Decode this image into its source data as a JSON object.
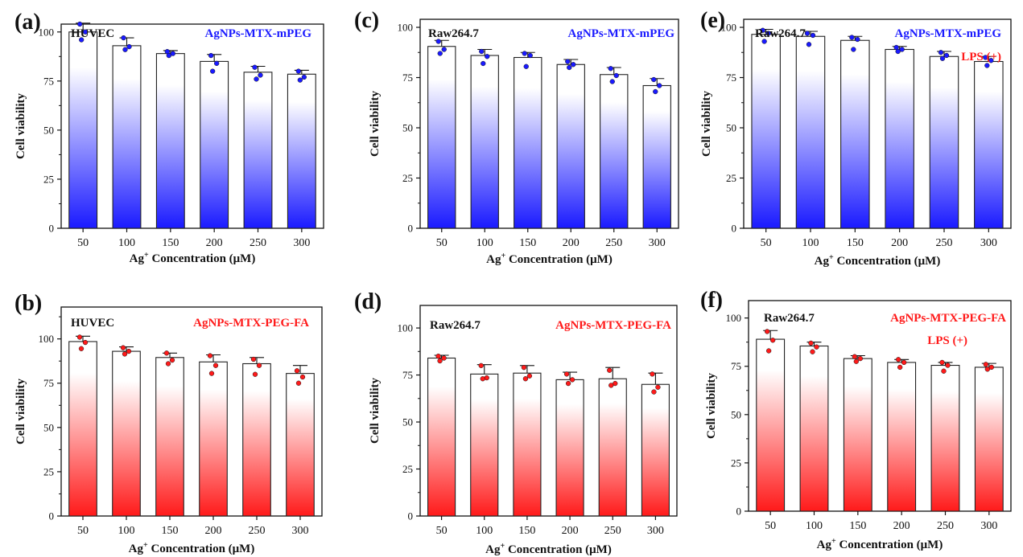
{
  "colors": {
    "blue": "#1a1aff",
    "red": "#ff1a1a",
    "text": "#111111"
  },
  "chart_data": [
    {
      "panel": "(a)",
      "type": "bar",
      "cell_line": "HUVEC",
      "sample": "AgNPs-MTX-mPEG",
      "condition": "",
      "color": "blue",
      "categories": [
        "50",
        "100",
        "150",
        "200",
        "250",
        "300"
      ],
      "values": [
        100,
        93,
        89,
        85,
        79.5,
        78.5
      ],
      "error": [
        4.5,
        4,
        1.5,
        3.5,
        3,
        2
      ],
      "points": [
        [
          104,
          100,
          96
        ],
        [
          97,
          92.5,
          91
        ],
        [
          90,
          89,
          88
        ],
        [
          88,
          84,
          80
        ],
        [
          82,
          78,
          76
        ],
        [
          80,
          77,
          75.5
        ]
      ],
      "ylabel": "Cell viability",
      "xlabel_parts": [
        "Ag",
        "+",
        " Concentration (μM)"
      ],
      "ylim": [
        0,
        104
      ],
      "yticks": [
        0,
        25,
        50,
        75,
        100
      ]
    },
    {
      "panel": "(c)",
      "type": "bar",
      "cell_line": "Raw264.7",
      "sample": "AgNPs-MTX-mPEG",
      "condition": "",
      "color": "blue",
      "categories": [
        "50",
        "100",
        "150",
        "200",
        "250",
        "300"
      ],
      "values": [
        90.5,
        86,
        85,
        81.5,
        76.5,
        71
      ],
      "error": [
        3,
        3,
        2.5,
        2.5,
        3.5,
        3.5
      ],
      "points": [
        [
          93,
          89,
          87
        ],
        [
          88,
          85.5,
          82
        ],
        [
          87,
          86,
          80.5
        ],
        [
          83,
          81.5,
          80
        ],
        [
          79.5,
          76,
          73
        ],
        [
          74,
          71,
          68
        ]
      ],
      "ylabel": "Cell viability",
      "xlabel_parts": [
        "Ag",
        "+",
        " Concentration (μM)"
      ],
      "ylim": [
        0,
        104
      ],
      "yticks": [
        0,
        25,
        50,
        75,
        100
      ]
    },
    {
      "panel": "(e)",
      "type": "bar",
      "cell_line": "Raw264.7",
      "sample": "AgNPs-MTX-mPEG",
      "condition": "LPS (+)",
      "color": "blue",
      "categories": [
        "50",
        "100",
        "150",
        "200",
        "250",
        "300"
      ],
      "values": [
        96.5,
        95.5,
        93.5,
        89,
        85.5,
        83
      ],
      "error": [
        2.5,
        2.5,
        2,
        1.5,
        2.5,
        2.5
      ],
      "points": [
        [
          98.5,
          97,
          93
        ],
        [
          97,
          96,
          91.5
        ],
        [
          95,
          94,
          89
        ],
        [
          90,
          89,
          88
        ],
        [
          87.5,
          86,
          84.5
        ],
        [
          85,
          83.5,
          81
        ]
      ],
      "ylabel": "Cell viability",
      "xlabel_parts": [
        "Ag",
        "+",
        " Concentration (μM)"
      ],
      "ylim": [
        0,
        104
      ],
      "yticks": [
        0,
        25,
        50,
        75,
        100
      ]
    },
    {
      "panel": "(b)",
      "type": "bar",
      "cell_line": "HUVEC",
      "sample": "AgNPs-MTX-PEG-FA",
      "condition": "",
      "color": "red",
      "categories": [
        "50",
        "100",
        "150",
        "200",
        "250",
        "300"
      ],
      "values": [
        98.5,
        93,
        89.5,
        87,
        86,
        80.5
      ],
      "error": [
        3,
        2.5,
        2.5,
        4,
        3.5,
        4.5
      ],
      "points": [
        [
          101,
          98,
          94.5
        ],
        [
          95,
          93,
          91.5
        ],
        [
          92,
          88,
          86
        ],
        [
          90.5,
          85,
          80.5
        ],
        [
          88.5,
          85,
          80
        ],
        [
          82,
          78.5,
          75
        ]
      ],
      "ylabel": "Cell viability",
      "xlabel_parts": [
        "Ag",
        "+",
        " Concentration (μM)"
      ],
      "ylim": [
        0,
        118
      ],
      "yticks": [
        0,
        25,
        50,
        75,
        100
      ]
    },
    {
      "panel": "(d)",
      "type": "bar",
      "cell_line": "Raw264.7",
      "sample": "AgNPs-MTX-PEG-FA",
      "condition": "",
      "color": "red",
      "categories": [
        "50",
        "100",
        "150",
        "200",
        "250",
        "300"
      ],
      "values": [
        84,
        75.5,
        76,
        72.5,
        73,
        70
      ],
      "error": [
        1.5,
        5,
        4,
        4,
        6,
        6
      ],
      "points": [
        [
          85,
          84,
          82.5
        ],
        [
          80,
          73.5,
          73
        ],
        [
          79,
          74.5,
          73
        ],
        [
          75.5,
          72.5,
          70.5
        ],
        [
          77.5,
          70.5,
          69.5
        ],
        [
          75.5,
          68.5,
          66
        ]
      ],
      "ylabel": "Cell viability",
      "xlabel_parts": [
        "Ag",
        "+",
        " Concentration (μM)"
      ],
      "ylim": [
        0,
        112
      ],
      "yticks": [
        0,
        25,
        50,
        75,
        100
      ]
    },
    {
      "panel": "(f)",
      "type": "bar",
      "cell_line": "Raw264.7",
      "sample": "AgNPs-MTX-PEG-FA",
      "condition": "LPS (+)",
      "color": "red",
      "categories": [
        "50",
        "100",
        "150",
        "200",
        "250",
        "300"
      ],
      "values": [
        89,
        85.5,
        79,
        77,
        75.5,
        74.5
      ],
      "error": [
        4.5,
        2,
        1.5,
        1.5,
        1.5,
        2
      ],
      "points": [
        [
          93,
          88.5,
          83
        ],
        [
          87,
          85,
          82.5
        ],
        [
          80,
          79,
          77.5
        ],
        [
          78.5,
          77,
          74.5
        ],
        [
          77,
          75.5,
          72.5
        ],
        [
          76,
          74.5,
          73.5
        ]
      ],
      "ylabel": "Cell viability",
      "xlabel_parts": [
        "Ag",
        "+",
        " Concentration (μM)"
      ],
      "ylim": [
        0,
        109
      ],
      "yticks": [
        0,
        25,
        50,
        75,
        100
      ]
    }
  ]
}
